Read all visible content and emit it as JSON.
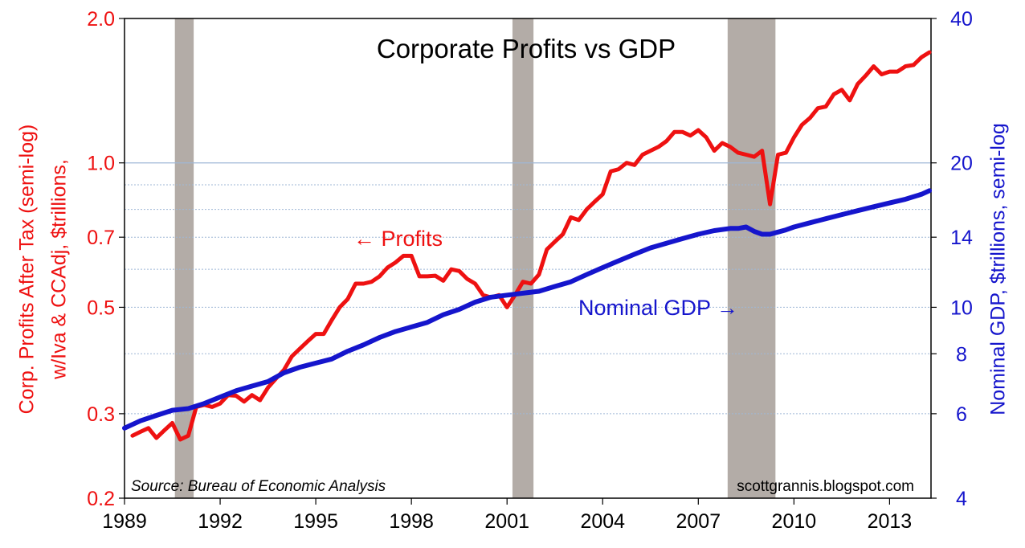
{
  "chart_data": {
    "type": "line",
    "title": "Corporate Profits vs GDP",
    "source": "Source: Bureau of Economic Analysis",
    "watermark": "scottgrannis.blogspot.com",
    "x_ticks": [
      "1989",
      "1992",
      "1995",
      "1998",
      "2001",
      "2004",
      "2007",
      "2010",
      "2013"
    ],
    "xlim": [
      1989.0,
      2014.3
    ],
    "left_axis": {
      "label_line1": "Corp. Profits After Tax (semi-log)",
      "label_line2": "w/Iva & CCAdj, $trillions,",
      "scale": "log",
      "ylim": [
        0.2,
        2.0
      ],
      "ticks": [
        "2.0",
        "1.0",
        "0.7",
        "0.5",
        "0.3",
        "0.2"
      ],
      "tick_values": [
        2.0,
        1.0,
        0.7,
        0.5,
        0.3,
        0.2
      ],
      "color": "#ee1111"
    },
    "right_axis": {
      "label": "Nominal GDP, $trillions, semi-log",
      "scale": "log",
      "ylim": [
        4,
        40
      ],
      "ticks": [
        "40",
        "20",
        "14",
        "10",
        "8",
        "6",
        "4"
      ],
      "tick_values": [
        40,
        20,
        14,
        10,
        8,
        6,
        4
      ],
      "color": "#1515cc"
    },
    "gridlines_left": [
      1.0,
      0.9,
      0.8,
      0.7,
      0.6,
      0.5,
      0.4,
      0.3
    ],
    "recessions": [
      [
        1990.58,
        1991.17
      ],
      [
        2001.17,
        2001.83
      ],
      [
        2007.92,
        2009.42
      ]
    ],
    "series": [
      {
        "name": "Profits",
        "axis": "left",
        "color": "#ee1111",
        "annotation": "← Profits",
        "x": [
          1989.25,
          1989.5,
          1989.75,
          1990.0,
          1990.25,
          1990.5,
          1990.75,
          1991.0,
          1991.25,
          1991.5,
          1991.75,
          1992.0,
          1992.25,
          1992.5,
          1992.75,
          1993.0,
          1993.25,
          1993.5,
          1993.75,
          1994.0,
          1994.25,
          1994.5,
          1994.75,
          1995.0,
          1995.25,
          1995.5,
          1995.75,
          1996.0,
          1996.25,
          1996.5,
          1996.75,
          1997.0,
          1997.25,
          1997.5,
          1997.75,
          1998.0,
          1998.25,
          1998.5,
          1998.75,
          1999.0,
          1999.25,
          1999.5,
          1999.75,
          2000.0,
          2000.25,
          2000.5,
          2000.75,
          2001.0,
          2001.25,
          2001.5,
          2001.75,
          2002.0,
          2002.25,
          2002.5,
          2002.75,
          2003.0,
          2003.25,
          2003.5,
          2003.75,
          2004.0,
          2004.25,
          2004.5,
          2004.75,
          2005.0,
          2005.25,
          2005.5,
          2005.75,
          2006.0,
          2006.25,
          2006.5,
          2006.75,
          2007.0,
          2007.25,
          2007.5,
          2007.75,
          2008.0,
          2008.25,
          2008.5,
          2008.75,
          2009.0,
          2009.25,
          2009.5,
          2009.75,
          2010.0,
          2010.25,
          2010.5,
          2010.75,
          2011.0,
          2011.25,
          2011.5,
          2011.75,
          2012.0,
          2012.25,
          2012.5,
          2012.75,
          2013.0,
          2013.25,
          2013.5,
          2013.75,
          2014.0,
          2014.25
        ],
        "values": [
          0.27,
          0.275,
          0.28,
          0.267,
          0.277,
          0.287,
          0.265,
          0.27,
          0.31,
          0.313,
          0.31,
          0.315,
          0.328,
          0.327,
          0.318,
          0.328,
          0.32,
          0.34,
          0.355,
          0.37,
          0.395,
          0.41,
          0.425,
          0.44,
          0.44,
          0.47,
          0.5,
          0.52,
          0.56,
          0.56,
          0.565,
          0.58,
          0.605,
          0.62,
          0.64,
          0.64,
          0.58,
          0.58,
          0.582,
          0.568,
          0.6,
          0.595,
          0.573,
          0.56,
          0.53,
          0.524,
          0.53,
          0.5,
          0.53,
          0.565,
          0.56,
          0.585,
          0.66,
          0.685,
          0.71,
          0.77,
          0.76,
          0.8,
          0.83,
          0.86,
          0.96,
          0.97,
          1.0,
          0.99,
          1.04,
          1.06,
          1.08,
          1.11,
          1.16,
          1.16,
          1.14,
          1.17,
          1.13,
          1.06,
          1.1,
          1.08,
          1.05,
          1.04,
          1.03,
          1.06,
          0.82,
          1.04,
          1.05,
          1.13,
          1.2,
          1.24,
          1.3,
          1.31,
          1.39,
          1.42,
          1.35,
          1.46,
          1.52,
          1.59,
          1.53,
          1.55,
          1.55,
          1.59,
          1.6,
          1.66,
          1.7
        ]
      },
      {
        "name": "Nominal GDP",
        "axis": "right",
        "color": "#1515cc",
        "annotation": "Nominal GDP →",
        "x": [
          1989.0,
          1989.5,
          1990.0,
          1990.5,
          1991.0,
          1991.5,
          1992.0,
          1992.5,
          1993.0,
          1993.5,
          1994.0,
          1994.5,
          1995.0,
          1995.5,
          1996.0,
          1996.5,
          1997.0,
          1997.5,
          1998.0,
          1998.5,
          1999.0,
          1999.5,
          2000.0,
          2000.5,
          2001.0,
          2001.5,
          2002.0,
          2002.5,
          2003.0,
          2003.5,
          2004.0,
          2004.5,
          2005.0,
          2005.5,
          2006.0,
          2006.5,
          2007.0,
          2007.5,
          2008.0,
          2008.25,
          2008.5,
          2008.75,
          2009.0,
          2009.25,
          2009.5,
          2009.75,
          2010.0,
          2010.5,
          2011.0,
          2011.5,
          2012.0,
          2012.5,
          2013.0,
          2013.5,
          2014.0,
          2014.25
        ],
        "values": [
          5.6,
          5.8,
          5.95,
          6.1,
          6.15,
          6.3,
          6.5,
          6.7,
          6.85,
          7.0,
          7.3,
          7.5,
          7.65,
          7.8,
          8.1,
          8.35,
          8.65,
          8.9,
          9.1,
          9.3,
          9.65,
          9.9,
          10.25,
          10.5,
          10.6,
          10.7,
          10.8,
          11.05,
          11.3,
          11.7,
          12.1,
          12.5,
          12.9,
          13.3,
          13.6,
          13.9,
          14.2,
          14.45,
          14.6,
          14.6,
          14.7,
          14.4,
          14.2,
          14.2,
          14.35,
          14.5,
          14.7,
          15.0,
          15.3,
          15.6,
          15.9,
          16.2,
          16.5,
          16.8,
          17.2,
          17.5
        ]
      }
    ]
  }
}
